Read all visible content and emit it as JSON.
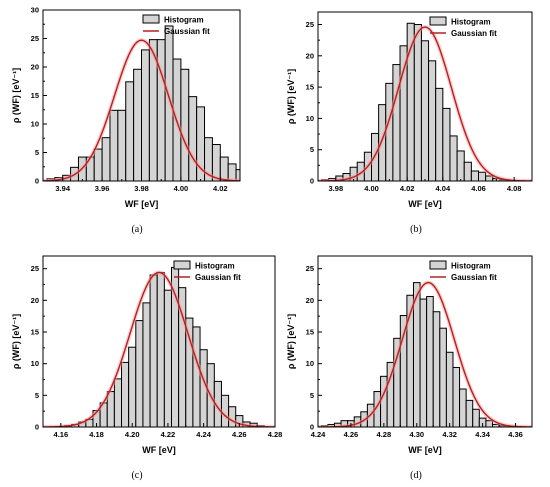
{
  "figure": {
    "colors": {
      "bar_fill": "#d4d4d4",
      "bar_stroke": "#000000",
      "fit_line": "#b22222",
      "fit_glow": "#ff9a9a",
      "axis": "#000000"
    },
    "panels": [
      {
        "caption": "(a)",
        "xlabel": "WF [eV]",
        "ylabel": "ρ (WF) [eV⁻¹]",
        "legend": [
          "Histogram",
          "Gaussian fit"
        ],
        "xlim": [
          3.93,
          4.03
        ],
        "ylim": [
          0,
          30
        ],
        "xticks": [
          3.94,
          3.96,
          3.98,
          4.0,
          4.02
        ],
        "xtick_labels": [
          "3.94",
          "3.96",
          "3.98",
          "4.00",
          "4.02"
        ],
        "yticks": [
          0,
          5,
          10,
          15,
          20,
          25,
          30
        ],
        "ytick_labels": [
          "0",
          "5",
          "10",
          "15",
          "20",
          "25",
          "30"
        ],
        "bin_width": 0.004,
        "bin_start": 3.932,
        "bar_values": [
          0.4,
          0.6,
          1.0,
          2.4,
          4.2,
          4.2,
          5.6,
          7.6,
          12.4,
          12.4,
          17.4,
          19.6,
          23.0,
          24.8,
          24.8,
          27.2,
          21.4,
          19.6,
          14.8,
          13.0,
          7.6,
          6.4,
          4.2,
          3.0,
          2.0,
          0.8,
          1.0
        ],
        "fit": {
          "mean": 3.98,
          "sigma": 0.0137,
          "peak": 24.7
        }
      },
      {
        "caption": "(b)",
        "xlabel": "WF [eV]",
        "ylabel": "ρ (WF) [eV⁻¹]",
        "legend": [
          "Histogram",
          "Gaussian fit"
        ],
        "xlim": [
          3.97,
          4.09
        ],
        "ylim": [
          0,
          27
        ],
        "xticks": [
          3.98,
          4.0,
          4.02,
          4.04,
          4.06,
          4.08
        ],
        "xtick_labels": [
          "3.98",
          "4.00",
          "4.02",
          "4.04",
          "4.06",
          "4.08"
        ],
        "yticks": [
          0,
          5,
          10,
          15,
          20,
          25
        ],
        "ytick_labels": [
          "0",
          "5",
          "10",
          "15",
          "20",
          "25"
        ],
        "bin_width": 0.004,
        "bin_start": 3.972,
        "bar_values": [
          0.2,
          0.4,
          0.8,
          1.2,
          2.2,
          3.0,
          4.6,
          7.6,
          12.2,
          15.6,
          18.6,
          21.6,
          25.2,
          25.0,
          22.4,
          19.2,
          14.8,
          11.6,
          7.2,
          4.8,
          3.0,
          1.6,
          1.4,
          0.8,
          0.4,
          0.2
        ],
        "fit": {
          "mean": 4.03,
          "sigma": 0.0148,
          "peak": 24.6
        }
      },
      {
        "caption": "(c)",
        "xlabel": "WF [eV]",
        "ylabel": "ρ (WF) [eV⁻¹]",
        "legend": [
          "Histogram",
          "Gaussian fit"
        ],
        "xlim": [
          4.15,
          4.28
        ],
        "ylim": [
          0,
          27
        ],
        "xticks": [
          4.16,
          4.18,
          4.2,
          4.22,
          4.24,
          4.26,
          4.28
        ],
        "xtick_labels": [
          "4.16",
          "4.18",
          "4.20",
          "4.22",
          "4.24",
          "4.26",
          "4.28"
        ],
        "yticks": [
          0,
          5,
          10,
          15,
          20,
          25
        ],
        "ytick_labels": [
          "0",
          "5",
          "10",
          "15",
          "20",
          "25"
        ],
        "bin_width": 0.004,
        "bin_start": 4.162,
        "bar_values": [
          0.2,
          0.4,
          0.8,
          1.2,
          2.6,
          3.8,
          5.6,
          7.6,
          10.2,
          12.6,
          16.8,
          19.6,
          24.0,
          24.4,
          21.6,
          25.2,
          22.0,
          17.2,
          15.8,
          12.2,
          10.0,
          7.2,
          5.0,
          3.2,
          1.8,
          0.8,
          0.6,
          0.2
        ],
        "fit": {
          "mean": 4.215,
          "sigma": 0.0162,
          "peak": 24.4
        }
      },
      {
        "caption": "(d)",
        "xlabel": "WF [eV]",
        "ylabel": "ρ (WF) [eV⁻¹]",
        "legend": [
          "Histogram",
          "Gaussian fit"
        ],
        "xlim": [
          4.24,
          4.37
        ],
        "ylim": [
          0,
          27
        ],
        "xticks": [
          4.24,
          4.26,
          4.28,
          4.3,
          4.32,
          4.34,
          4.36
        ],
        "xtick_labels": [
          "4.24",
          "4.26",
          "4.28",
          "4.30",
          "4.32",
          "4.34",
          "4.36"
        ],
        "yticks": [
          0,
          5,
          10,
          15,
          20,
          25
        ],
        "ytick_labels": [
          "0",
          "5",
          "10",
          "15",
          "20",
          "25"
        ],
        "bin_width": 0.004,
        "bin_start": 4.242,
        "bar_values": [
          0.2,
          0.4,
          0.6,
          1.0,
          1.0,
          1.6,
          2.4,
          3.6,
          5.6,
          8.0,
          10.2,
          14.0,
          17.6,
          20.8,
          22.8,
          20.2,
          20.6,
          18.2,
          15.6,
          11.8,
          9.4,
          6.0,
          4.2,
          2.8,
          1.4,
          1.0,
          0.4,
          0.2
        ],
        "fit": {
          "mean": 4.307,
          "sigma": 0.0158,
          "peak": 22.8
        }
      }
    ]
  }
}
